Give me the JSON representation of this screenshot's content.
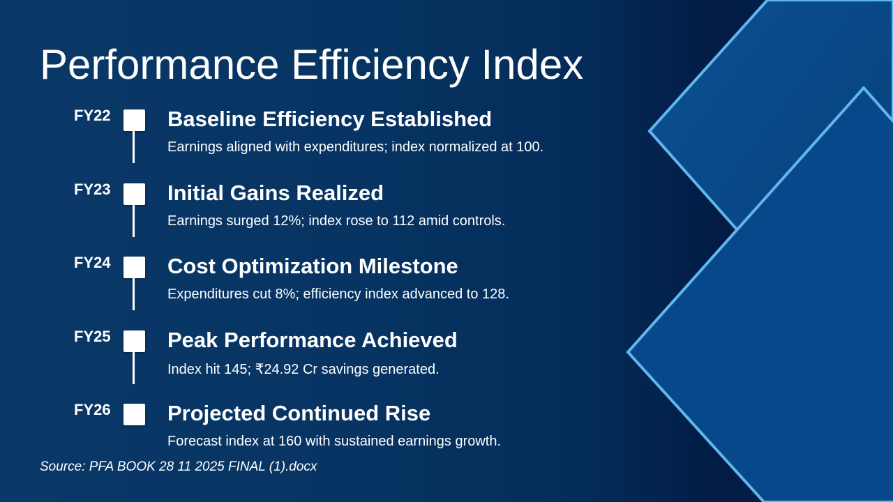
{
  "slide": {
    "title": "Performance Efficiency Index",
    "source": "Source: PFA BOOK 28 11 2025 FINAL (1).docx",
    "timeline": [
      {
        "year": "FY22",
        "heading": "Baseline Efficiency Established",
        "description": "Earnings aligned with expenditures; index normalized at 100."
      },
      {
        "year": "FY23",
        "heading": "Initial Gains Realized",
        "description": "Earnings surged 12%; index rose to 112 amid controls."
      },
      {
        "year": "FY24",
        "heading": "Cost Optimization Milestone",
        "description": "Expenditures cut 8%; efficiency index advanced to 128."
      },
      {
        "year": "FY25",
        "heading": "Peak Performance Achieved",
        "description": "Index hit 145; ₹24.92 Cr savings generated."
      },
      {
        "year": "FY26",
        "heading": "Projected Continued Rise",
        "description": "Forecast index at 160 with sustained earnings growth."
      }
    ]
  },
  "colors": {
    "accent_line": "#5fb4ee",
    "panel": "#0a4c8a"
  }
}
